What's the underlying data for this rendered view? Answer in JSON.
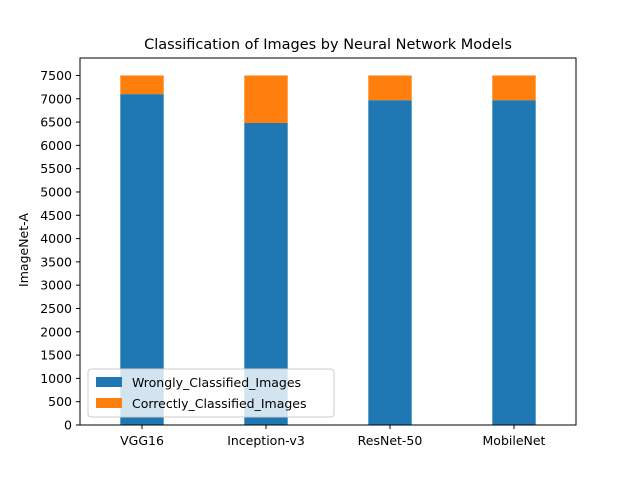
{
  "chart_data": {
    "type": "bar",
    "stacked": true,
    "title": "Classification of Images by Neural Network Models",
    "xlabel": "",
    "ylabel": "ImageNet-A",
    "categories": [
      "VGG16",
      "Inception-v3",
      "ResNet-50",
      "MobileNet"
    ],
    "series": [
      {
        "name": "Wrongly_Classified_Images",
        "color": "#1f77b4",
        "values": [
          7100,
          6480,
          6970,
          6970
        ]
      },
      {
        "name": "Correctly_Classified_Images",
        "color": "#ff7f0e",
        "values": [
          400,
          1020,
          530,
          530
        ]
      }
    ],
    "ylim": [
      0,
      7500
    ],
    "yticks": [
      0,
      500,
      1000,
      1500,
      2000,
      2500,
      3000,
      3500,
      4000,
      4500,
      5000,
      5500,
      6000,
      6500,
      7000,
      7500
    ],
    "legend_position": "lower left",
    "grid": false
  }
}
